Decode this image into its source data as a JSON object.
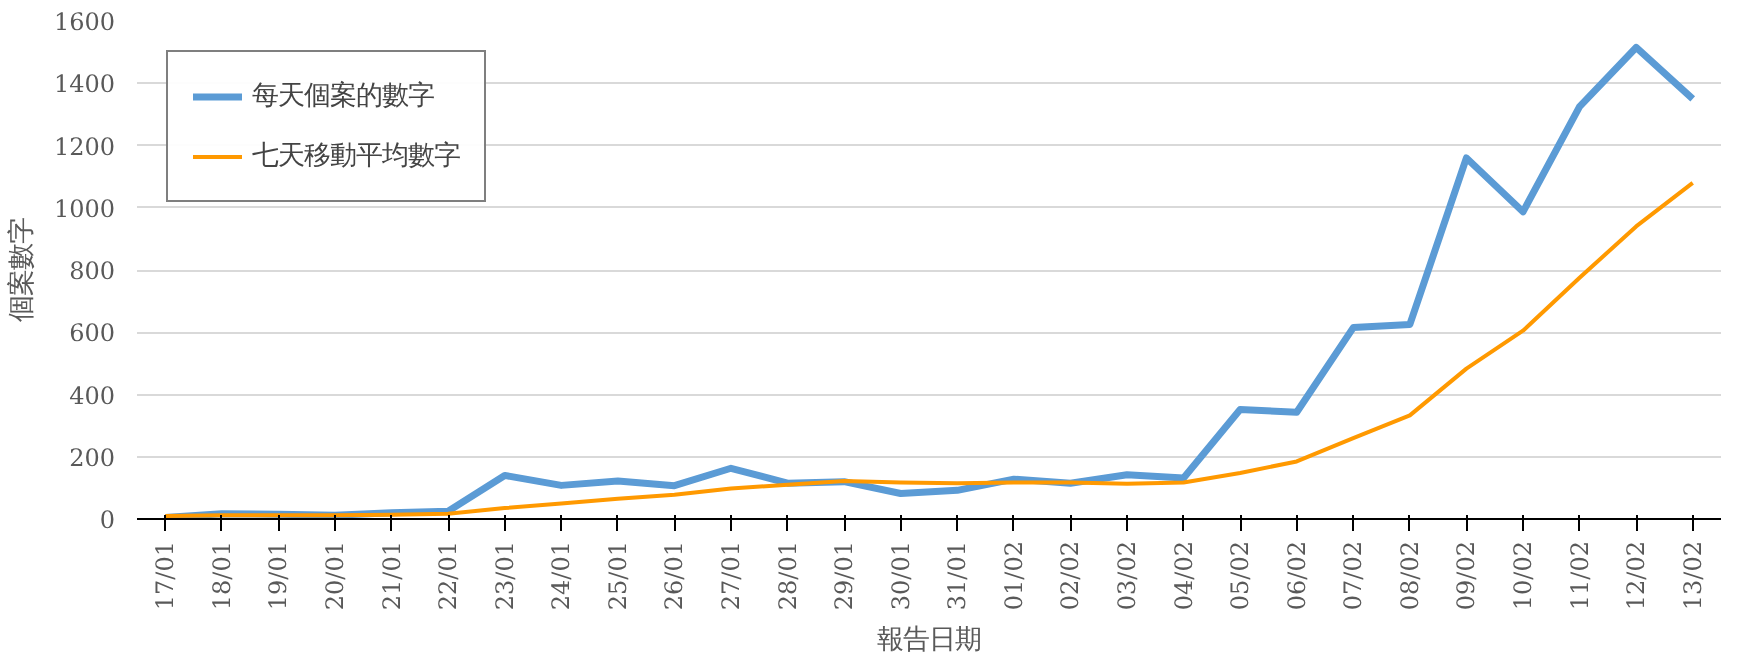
{
  "chart_data": {
    "type": "line",
    "xlabel": "報告日期",
    "ylabel": "個案數字",
    "categories": [
      "17/01",
      "18/01",
      "19/01",
      "20/01",
      "21/01",
      "22/01",
      "23/01",
      "24/01",
      "25/01",
      "26/01",
      "27/01",
      "28/01",
      "29/01",
      "30/01",
      "31/01",
      "01/02",
      "02/02",
      "03/02",
      "04/02",
      "05/02",
      "06/02",
      "07/02",
      "08/02",
      "09/02",
      "10/02",
      "11/02",
      "12/02",
      "13/02"
    ],
    "series": [
      {
        "name": "每天個案的數字",
        "color": "#5b9bd5",
        "values": [
          5,
          17,
          15,
          12,
          20,
          25,
          140,
          108,
          122,
          107,
          163,
          115,
          120,
          82,
          92,
          128,
          115,
          142,
          132,
          352,
          343,
          615,
          625,
          1160,
          987,
          1325,
          1515,
          1350
        ]
      },
      {
        "name": "七天移動平均數字",
        "color": "#ff9900",
        "values": [
          10,
          12,
          12,
          12,
          14,
          17,
          35,
          50,
          65,
          78,
          98,
          110,
          122,
          117,
          115,
          117,
          117,
          113,
          117,
          148,
          185,
          260,
          333,
          483,
          605,
          775,
          940,
          1080
        ]
      }
    ],
    "ylim": [
      0,
      1600
    ],
    "yticks": [
      0,
      200,
      400,
      600,
      800,
      1000,
      1200,
      1400,
      1600
    ],
    "grid": "y",
    "legend": "top left",
    "marker": "none",
    "line_style": "solid"
  }
}
